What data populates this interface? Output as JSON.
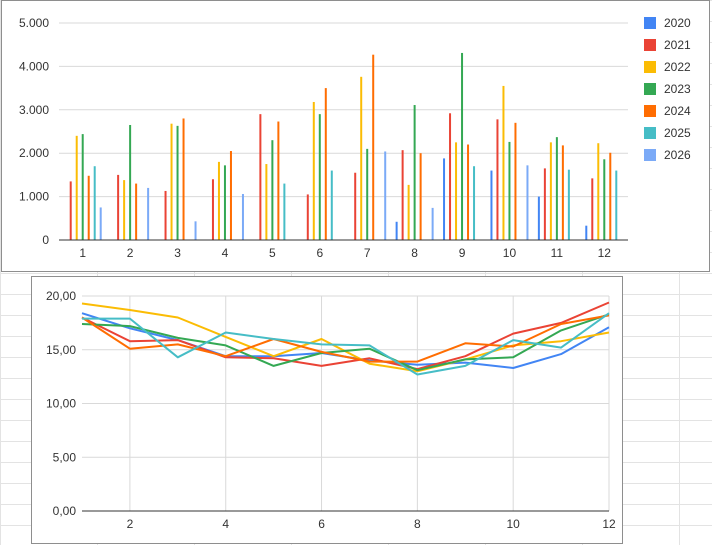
{
  "chart_data": [
    {
      "type": "bar",
      "title": "",
      "xlabel": "",
      "ylabel": "",
      "categories": [
        "1",
        "2",
        "3",
        "4",
        "5",
        "6",
        "7",
        "8",
        "9",
        "10",
        "11",
        "12"
      ],
      "ylim": [
        0,
        5000
      ],
      "yticks": [
        0,
        1000,
        2000,
        3000,
        4000,
        5000
      ],
      "ytick_labels": [
        "0",
        "1.000",
        "2.000",
        "3.000",
        "4.000",
        "5.000"
      ],
      "grid": true,
      "legend_position": "right",
      "series": [
        {
          "name": "2020",
          "color": "#4285f4",
          "values": [
            0,
            0,
            0,
            0,
            0,
            0,
            0,
            420,
            1880,
            1600,
            1000,
            330
          ]
        },
        {
          "name": "2021",
          "color": "#ea4335",
          "values": [
            1350,
            1500,
            1130,
            1400,
            2900,
            1050,
            1550,
            2070,
            2920,
            2780,
            1650,
            1420
          ]
        },
        {
          "name": "2022",
          "color": "#fbbc04",
          "values": [
            2400,
            1380,
            2680,
            1800,
            1750,
            3180,
            3760,
            1270,
            2250,
            3550,
            2250,
            2230
          ]
        },
        {
          "name": "2023",
          "color": "#34a853",
          "values": [
            2440,
            2650,
            2630,
            1720,
            2300,
            2900,
            2100,
            3110,
            4310,
            2260,
            2370,
            1860
          ]
        },
        {
          "name": "2024",
          "color": "#ff6d01",
          "values": [
            1480,
            1300,
            2800,
            2050,
            2730,
            3500,
            4270,
            2000,
            2200,
            2700,
            2180,
            2010
          ]
        },
        {
          "name": "2025",
          "color": "#46bdc6",
          "values": [
            1700,
            0,
            0,
            0,
            1300,
            1600,
            0,
            0,
            1700,
            0,
            1620,
            1600
          ]
        },
        {
          "name": "2026",
          "color": "#7baaf7",
          "values": [
            750,
            1200,
            430,
            1060,
            0,
            0,
            2040,
            740,
            0,
            1720,
            0,
            0
          ]
        }
      ]
    },
    {
      "type": "line",
      "title": "",
      "xlabel": "",
      "ylabel": "",
      "x": [
        1,
        2,
        3,
        4,
        5,
        6,
        7,
        8,
        9,
        10,
        11,
        12
      ],
      "xticks": [
        2,
        4,
        6,
        8,
        10,
        12
      ],
      "xtick_labels": [
        "2",
        "4",
        "6",
        "8",
        "10",
        "12"
      ],
      "xlim": [
        1,
        12
      ],
      "ylim": [
        0,
        20
      ],
      "yticks": [
        0,
        5,
        10,
        15,
        20
      ],
      "ytick_labels": [
        "0,00",
        "5,00",
        "10,00",
        "15,00",
        "20,00"
      ],
      "grid": true,
      "series": [
        {
          "color": "#4285f4",
          "values": [
            18.4,
            17.0,
            15.9,
            14.4,
            14.4,
            14.7,
            14.0,
            13.6,
            13.8,
            13.3,
            14.6,
            17.1
          ]
        },
        {
          "color": "#ea4335",
          "values": [
            18.0,
            15.8,
            15.9,
            14.3,
            14.2,
            13.5,
            14.2,
            13.2,
            14.4,
            16.5,
            17.5,
            19.4
          ]
        },
        {
          "color": "#fbbc04",
          "values": [
            19.3,
            18.7,
            18.0,
            16.2,
            14.4,
            16.0,
            13.7,
            13.0,
            14.1,
            15.4,
            15.8,
            16.6
          ]
        },
        {
          "color": "#34a853",
          "values": [
            17.4,
            17.2,
            16.1,
            15.4,
            13.5,
            14.7,
            15.1,
            13.1,
            14.1,
            14.3,
            16.8,
            18.3
          ]
        },
        {
          "color": "#ff6d01",
          "values": [
            18.0,
            15.1,
            15.5,
            14.4,
            16.0,
            14.8,
            13.9,
            13.9,
            15.6,
            15.3,
            17.4,
            18.2
          ]
        },
        {
          "color": "#46bdc6",
          "values": [
            17.9,
            17.9,
            14.3,
            16.6,
            16.0,
            15.5,
            15.4,
            12.7,
            13.5,
            15.9,
            15.2,
            18.4
          ]
        }
      ]
    }
  ]
}
